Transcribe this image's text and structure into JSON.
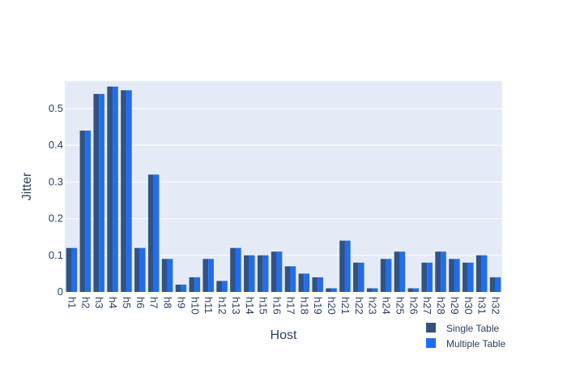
{
  "chart_data": {
    "type": "bar",
    "title": "",
    "xlabel": "Host",
    "ylabel": "Jitter",
    "ylim": [
      0,
      0.575
    ],
    "yticks": [
      0,
      0.1,
      0.2,
      0.3,
      0.4,
      0.5
    ],
    "ytick_labels": [
      "0",
      "0.1",
      "0.2",
      "0.3",
      "0.4",
      "0.5"
    ],
    "grid": true,
    "legend_position": "bottom-right",
    "categories": [
      "h1",
      "h2",
      "h3",
      "h4",
      "h5",
      "h6",
      "h7",
      "h8",
      "h9",
      "h10",
      "h11",
      "h12",
      "h13",
      "h14",
      "h15",
      "h16",
      "h17",
      "h18",
      "h19",
      "h20",
      "h21",
      "h22",
      "h23",
      "h24",
      "h25",
      "h26",
      "h27",
      "h28",
      "h29",
      "h30",
      "h31",
      "h32"
    ],
    "series": [
      {
        "name": "Single Table",
        "color": "#34527a",
        "values": [
          0.12,
          0.44,
          0.54,
          0.56,
          0.55,
          0.12,
          0.32,
          0.09,
          0.02,
          0.04,
          0.09,
          0.03,
          0.12,
          0.1,
          0.1,
          0.11,
          0.07,
          0.05,
          0.04,
          0.01,
          0.14,
          0.08,
          0.01,
          0.09,
          0.11,
          0.01,
          0.08,
          0.11,
          0.09,
          0.08,
          0.1,
          0.04
        ]
      },
      {
        "name": "Multiple Table",
        "color": "#1f6df5",
        "values": [
          0.12,
          0.44,
          0.54,
          0.56,
          0.55,
          0.12,
          0.32,
          0.09,
          0.02,
          0.04,
          0.09,
          0.03,
          0.12,
          0.1,
          0.1,
          0.11,
          0.07,
          0.05,
          0.04,
          0.01,
          0.14,
          0.08,
          0.01,
          0.09,
          0.11,
          0.01,
          0.08,
          0.11,
          0.09,
          0.08,
          0.1,
          0.04
        ]
      }
    ],
    "colors": {
      "plot_background": "#e5ebf6",
      "gridline": "#ffffff",
      "text": "#2a3f5f"
    }
  }
}
